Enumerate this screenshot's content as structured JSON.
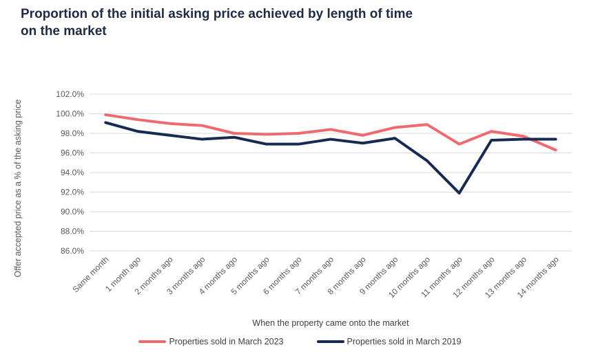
{
  "title_lines": [
    "Proportion of the initial asking price achieved by length of time",
    "on the market"
  ],
  "colors": {
    "title": "#1f2b45",
    "grid": "#d9d9d9",
    "tick_text": "#595959",
    "axis_title_text": "#404040",
    "series_2023": "#ee6a6e",
    "series_2019": "#162a52"
  },
  "chart_data": {
    "type": "line",
    "title": "Proportion of the initial asking price achieved by length of time on the market",
    "xlabel": "When the property came onto the market",
    "ylabel": "Offer accepted price as a % of the asking price",
    "ylim": [
      86,
      102
    ],
    "ytick_step": 2,
    "ytick_suffix": "%",
    "grid": "horizontal",
    "legend_position": "bottom",
    "categories": [
      "Same month",
      "1 month ago",
      "2 months ago",
      "3 months ago",
      "4 months ago",
      "5 months ago",
      "6 months ago",
      "7 months ago",
      "8 months ago",
      "9 months ago",
      "10 months ago",
      "11 months ago",
      "12 months ago",
      "13 months ago",
      "14 months ago"
    ],
    "series": [
      {
        "name": "Properties sold in March 2023",
        "color": "#ee6a6e",
        "values": [
          99.9,
          99.4,
          99.0,
          98.8,
          98.0,
          97.9,
          98.0,
          98.4,
          97.8,
          98.6,
          98.9,
          96.9,
          98.2,
          97.7,
          96.3
        ]
      },
      {
        "name": "Properties sold in March 2019",
        "color": "#162a52",
        "values": [
          99.1,
          98.2,
          97.8,
          97.4,
          97.6,
          96.9,
          96.9,
          97.4,
          97.0,
          97.5,
          95.2,
          91.9,
          97.3,
          97.4,
          97.4
        ]
      }
    ]
  }
}
